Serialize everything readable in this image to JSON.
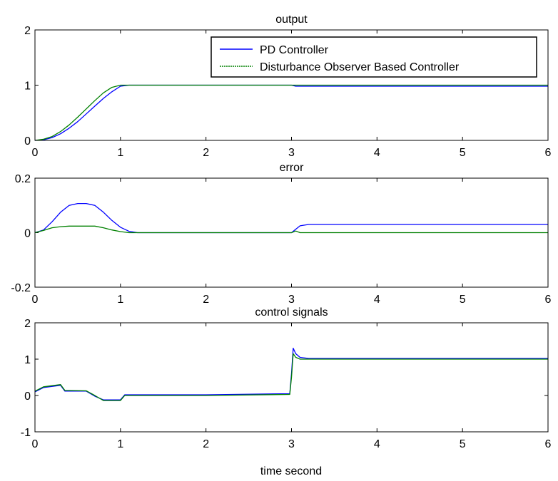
{
  "figure": {
    "xlabel": "time second"
  },
  "chart_data": [
    {
      "type": "line",
      "title": "output",
      "xlim": [
        0,
        6
      ],
      "ylim": [
        0,
        2
      ],
      "xticks": [
        "0",
        "1",
        "2",
        "3",
        "4",
        "5",
        "6"
      ],
      "yticks": [
        "0",
        "1",
        "2"
      ],
      "legend": {
        "position": "top-right"
      },
      "series": [
        {
          "name": "PD Controller",
          "color": "#0000ff",
          "x": [
            0,
            0.1,
            0.2,
            0.3,
            0.4,
            0.5,
            0.6,
            0.7,
            0.8,
            0.9,
            1.0,
            1.1,
            2,
            3,
            3.05,
            6
          ],
          "y": [
            0,
            0.01,
            0.05,
            0.12,
            0.22,
            0.34,
            0.48,
            0.62,
            0.76,
            0.88,
            0.98,
            1.0,
            1.0,
            1.0,
            0.98,
            0.98
          ]
        },
        {
          "name": "Disturbance Observer Based Controller",
          "color": "#008000",
          "x": [
            0,
            0.1,
            0.2,
            0.3,
            0.4,
            0.5,
            0.6,
            0.7,
            0.8,
            0.9,
            1.0,
            1.1,
            2,
            3,
            6
          ],
          "y": [
            0,
            0.02,
            0.07,
            0.16,
            0.28,
            0.42,
            0.57,
            0.72,
            0.86,
            0.96,
            1.0,
            1.0,
            1.0,
            1.0,
            1.0
          ]
        }
      ]
    },
    {
      "type": "line",
      "title": "error",
      "xlim": [
        0,
        6
      ],
      "ylim": [
        -0.2,
        0.2
      ],
      "xticks": [
        "0",
        "1",
        "2",
        "3",
        "4",
        "5",
        "6"
      ],
      "yticks": [
        "-0.2",
        "0",
        "0.2"
      ],
      "series": [
        {
          "color": "#0000ff",
          "x": [
            0,
            0.1,
            0.2,
            0.3,
            0.4,
            0.5,
            0.6,
            0.7,
            0.8,
            0.9,
            1.0,
            1.1,
            1.2,
            3.0,
            3.1,
            3.2,
            6
          ],
          "y": [
            0,
            0.01,
            0.04,
            0.075,
            0.1,
            0.107,
            0.107,
            0.1,
            0.075,
            0.045,
            0.02,
            0.005,
            0,
            0,
            0.025,
            0.03,
            0.03
          ]
        },
        {
          "color": "#008000",
          "x": [
            0,
            0.1,
            0.2,
            0.3,
            0.4,
            0.7,
            0.8,
            0.9,
            1.0,
            1.1,
            3.0,
            3.05,
            3.1,
            6
          ],
          "y": [
            0,
            0.008,
            0.018,
            0.022,
            0.024,
            0.024,
            0.018,
            0.01,
            0.004,
            0,
            0,
            0.006,
            0,
            0
          ]
        }
      ]
    },
    {
      "type": "line",
      "title": "control signals",
      "xlim": [
        0,
        6
      ],
      "ylim": [
        -1,
        2
      ],
      "xticks": [
        "0",
        "1",
        "2",
        "3",
        "4",
        "5",
        "6"
      ],
      "yticks": [
        "-1",
        "0",
        "1",
        "2"
      ],
      "series": [
        {
          "color": "#0000ff",
          "x": [
            0,
            0.1,
            0.3,
            0.35,
            0.6,
            0.7,
            0.8,
            1.0,
            1.05,
            2.0,
            2.98,
            3.0,
            3.02,
            3.05,
            3.1,
            3.2,
            6
          ],
          "y": [
            0.1,
            0.22,
            0.28,
            0.12,
            0.12,
            -0.02,
            -0.12,
            -0.12,
            0.02,
            0.02,
            0.05,
            0.6,
            1.3,
            1.15,
            1.05,
            1.02,
            1.02
          ]
        },
        {
          "color": "#008000",
          "x": [
            0,
            0.1,
            0.3,
            0.35,
            0.6,
            0.7,
            0.8,
            1.0,
            1.05,
            2.0,
            2.98,
            3.0,
            3.02,
            3.05,
            3.1,
            3.2,
            6
          ],
          "y": [
            0.12,
            0.24,
            0.3,
            0.14,
            0.13,
            0.0,
            -0.14,
            -0.14,
            0.0,
            0.0,
            0.03,
            0.5,
            1.15,
            1.05,
            1.0,
            1.0,
            1.0
          ]
        }
      ]
    }
  ]
}
